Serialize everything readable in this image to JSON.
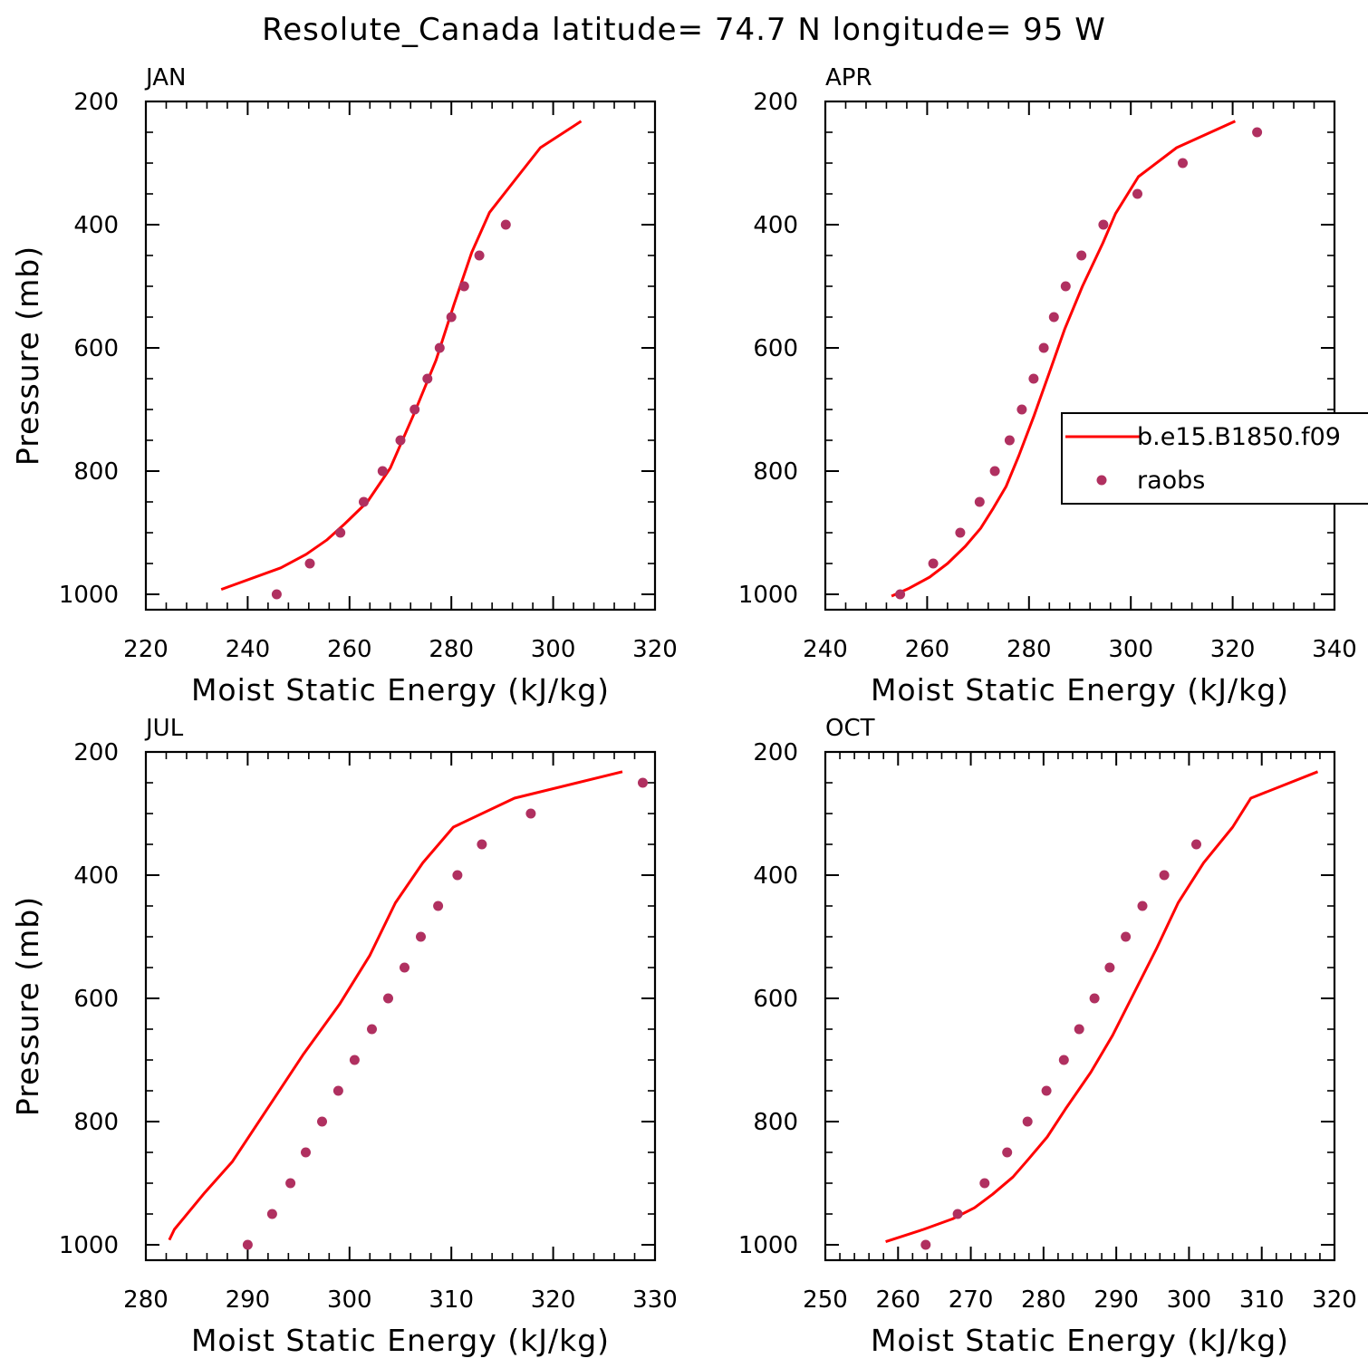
{
  "title": "Resolute_Canada  latitude= 74.7 N longitude= 95 W",
  "colors": {
    "model": "#ff0000",
    "obs": "#b03060",
    "axes": "#000000"
  },
  "legend": {
    "placement": "right, inside APR panel (clipped at figure edge)",
    "model_label": "b.e15.B1850.f09",
    "obs_label": "raobs"
  },
  "chart_data": [
    {
      "type": "line",
      "title": "JAN",
      "xlabel": "Moist Static Energy (kJ/kg)",
      "ylabel": "Pressure (mb)",
      "xlim": [
        220,
        320
      ],
      "xticks": [
        "220",
        "240",
        "260",
        "280",
        "300",
        "320"
      ],
      "ylim": [
        1025,
        200
      ],
      "yticks": [
        "200",
        "400",
        "600",
        "800",
        "1000"
      ],
      "series": [
        {
          "name": "b.e15.B1850.f09",
          "kind": "line",
          "x": [
            234.8,
            246.5,
            251.5,
            255.5,
            259.0,
            263.5,
            268.0,
            272.5,
            277.0,
            280.5,
            284.0,
            287.5,
            293.0,
            297.5,
            305.5
          ],
          "y": [
            992,
            957,
            935,
            912,
            886,
            850,
            795,
            710,
            620,
            530,
            445,
            380,
            322,
            275,
            232
          ]
        },
        {
          "name": "raobs",
          "kind": "scatter",
          "x": [
            245.7,
            252.2,
            258.2,
            262.8,
            266.5,
            270.0,
            272.8,
            275.3,
            277.7,
            280.0,
            282.5,
            285.5,
            290.7
          ],
          "y": [
            1000,
            950,
            900,
            850,
            800,
            750,
            700,
            650,
            600,
            550,
            500,
            450,
            400
          ]
        }
      ]
    },
    {
      "type": "line",
      "title": "APR",
      "xlabel": "Moist Static Energy (kJ/kg)",
      "ylabel": "",
      "xlim": [
        240,
        340
      ],
      "xticks": [
        "240",
        "260",
        "280",
        "300",
        "320",
        "340"
      ],
      "ylim": [
        1025,
        200
      ],
      "yticks": [
        "200",
        "400",
        "600",
        "800",
        "1000"
      ],
      "series": [
        {
          "name": "b.e15.B1850.f09",
          "kind": "line",
          "x": [
            253.0,
            256.5,
            260.5,
            264.0,
            267.5,
            270.5,
            273.0,
            275.5,
            278.0,
            281.0,
            284.0,
            287.0,
            290.5,
            294.5,
            297.0,
            301.5,
            309.0,
            320.5
          ],
          "y": [
            1003,
            990,
            972,
            950,
            922,
            893,
            860,
            825,
            775,
            710,
            640,
            570,
            500,
            430,
            382,
            322,
            275,
            232
          ]
        },
        {
          "name": "raobs",
          "kind": "scatter",
          "x": [
            254.7,
            261.2,
            266.5,
            270.3,
            273.3,
            276.2,
            278.6,
            280.9,
            282.9,
            284.9,
            287.2,
            290.3,
            294.6,
            301.3,
            310.2,
            324.8
          ],
          "y": [
            1000,
            950,
            900,
            850,
            800,
            750,
            700,
            650,
            600,
            550,
            500,
            450,
            400,
            350,
            300,
            250
          ]
        }
      ]
    },
    {
      "type": "line",
      "title": "JUL",
      "xlabel": "Moist Static Energy (kJ/kg)",
      "ylabel": "Pressure (mb)",
      "xlim": [
        280,
        330
      ],
      "xticks": [
        "280",
        "290",
        "300",
        "310",
        "320",
        "330"
      ],
      "ylim": [
        1025,
        200
      ],
      "yticks": [
        "200",
        "400",
        "600",
        "800",
        "1000"
      ],
      "series": [
        {
          "name": "b.e15.B1850.f09",
          "kind": "line",
          "x": [
            282.3,
            282.8,
            283.8,
            285.8,
            288.5,
            292.5,
            295.5,
            299.0,
            302.0,
            304.5,
            307.2,
            310.2,
            316.2,
            326.8
          ],
          "y": [
            992,
            975,
            955,
            915,
            865,
            765,
            690,
            610,
            530,
            445,
            380,
            322,
            275,
            232
          ]
        },
        {
          "name": "raobs",
          "kind": "scatter",
          "x": [
            290.0,
            292.4,
            294.2,
            295.7,
            297.3,
            298.9,
            300.5,
            302.2,
            303.8,
            305.4,
            307.0,
            308.7,
            310.6,
            313.0,
            317.8,
            328.8
          ],
          "y": [
            1000,
            950,
            900,
            850,
            800,
            750,
            700,
            650,
            600,
            550,
            500,
            450,
            400,
            350,
            300,
            250
          ]
        }
      ]
    },
    {
      "type": "line",
      "title": "OCT",
      "xlabel": "Moist Static Energy (kJ/kg)",
      "ylabel": "",
      "xlim": [
        250,
        320
      ],
      "xticks": [
        "250",
        "260",
        "270",
        "280",
        "290",
        "300",
        "310",
        "320"
      ],
      "ylim": [
        1025,
        200
      ],
      "yticks": [
        "200",
        "400",
        "600",
        "800",
        "1000"
      ],
      "series": [
        {
          "name": "b.e15.B1850.f09",
          "kind": "line",
          "x": [
            258.3,
            263.5,
            267.5,
            270.5,
            273.0,
            275.8,
            278.0,
            280.5,
            283.0,
            286.5,
            289.5,
            292.5,
            295.5,
            298.5,
            302.0,
            306.0,
            308.5,
            317.7
          ],
          "y": [
            995,
            975,
            958,
            940,
            918,
            890,
            860,
            825,
            780,
            720,
            660,
            590,
            520,
            445,
            380,
            322,
            275,
            232
          ]
        },
        {
          "name": "raobs",
          "kind": "scatter",
          "x": [
            263.8,
            268.2,
            271.9,
            275.0,
            277.8,
            280.4,
            282.8,
            284.9,
            287.0,
            289.1,
            291.3,
            293.6,
            296.6,
            301.0
          ],
          "y": [
            1000,
            950,
            900,
            850,
            800,
            750,
            700,
            650,
            600,
            550,
            500,
            450,
            400,
            350
          ]
        }
      ]
    }
  ]
}
